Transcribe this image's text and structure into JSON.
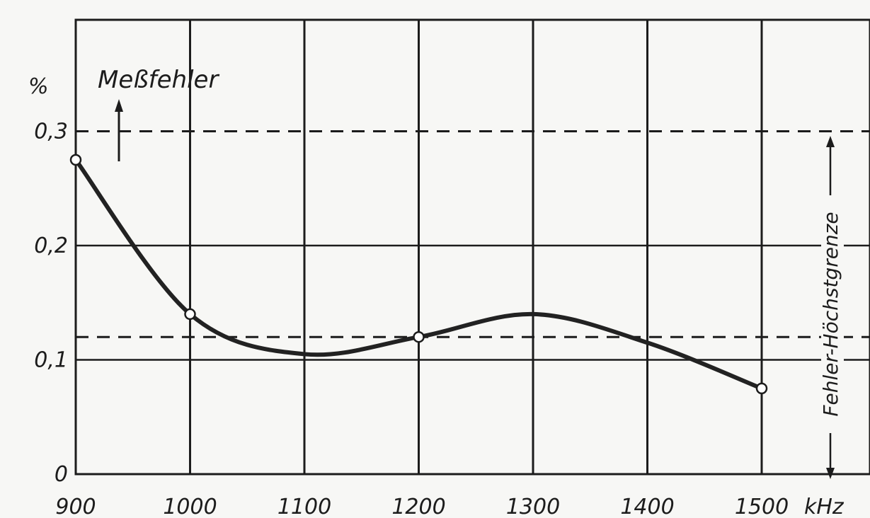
{
  "chart_data": {
    "type": "line",
    "ylabel": "Meßfehler",
    "y_unit": "%",
    "x_unit": "kHz",
    "xlim": [
      900,
      1600
    ],
    "ylim": [
      0,
      0.4
    ],
    "x_ticks": [
      "900",
      "1000",
      "1100",
      "1200",
      "1300",
      "1400",
      "1500"
    ],
    "y_ticks": [
      "0",
      "0,1",
      "0,2",
      "0,3"
    ],
    "grid": true,
    "series": [
      {
        "x": [
          900,
          1000,
          1100,
          1200,
          1300,
          1400,
          1500
        ],
        "y": [
          0.275,
          0.14,
          0.105,
          0.12,
          0.14,
          0.115,
          0.075
        ],
        "markers_at": [
          900,
          1000,
          1200,
          1500
        ]
      }
    ],
    "reference_lines": [
      {
        "y": 0.3,
        "style": "dashed"
      },
      {
        "y": 0.12,
        "style": "dashed"
      }
    ],
    "annotation": "Fehler-Höchstgrenze"
  }
}
